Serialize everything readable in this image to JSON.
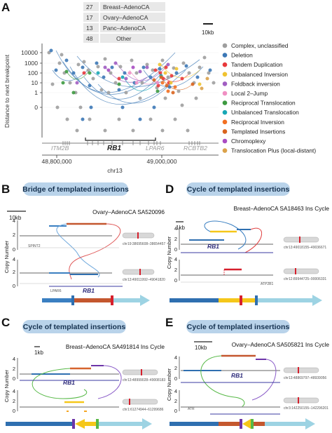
{
  "panels": {
    "a": {
      "letter": "A"
    },
    "b": {
      "letter": "B",
      "banner": "Bridge of templated insertions",
      "title": "Ovary–AdenoCA SA520096",
      "scale": "10kb",
      "chr_top": "chr19:38695608–38654457",
      "chr_bottom": "chr13:49011992–49041820",
      "gene_small_top": "SPINT2",
      "gene_small_bottom": "LPAR6",
      "gene_main": "RB1"
    },
    "c": {
      "letter": "C",
      "banner": "Cycle of templated insertions",
      "title": "Breast–AdenoCA SA491814 Ins Cycle",
      "scale": "1kb",
      "chr_top": "chr13:48999028–49008183",
      "chr_bottom": "chr1:61274944–61299686",
      "gene_main": "RB1"
    },
    "d": {
      "letter": "D",
      "banner": "Cycle of templated insertions",
      "title": "Breast–AdenoCA SA18463 Ins Cycle",
      "scale": "1kb",
      "chr_top": "chr13:49018155–49036671",
      "chr_bottom": "chr12:89944725–90006331",
      "gene_main": "RB1",
      "gene_small": "ATP2B1"
    },
    "e": {
      "letter": "E",
      "banner": "Cycle of templated insertions",
      "title": "Ovary–AdenoCA SA505821 Ins Cycle",
      "scale": "10kb",
      "chr_top": "chr13:48869797–48939056",
      "chr_bottom": "chr3:142250155–142296201",
      "gene_main": "RB1",
      "gene_small": "ATR"
    }
  },
  "cn_axis": {
    "label": "Copy Number",
    "ticks": [
      "0",
      "2",
      "4"
    ]
  },
  "count_table": [
    {
      "count": "27",
      "label": "Breast–AdenoCA"
    },
    {
      "count": "17",
      "label": "Ovary–AdenoCA"
    },
    {
      "count": "13",
      "label": "Panc–AdenoCA"
    },
    {
      "count": "48",
      "label": "Other"
    }
  ],
  "scale_a": "10kb",
  "chart_data": {
    "type": "scatter",
    "xlabel": "chr13",
    "ylabel": "Distance to next breakpoint",
    "x_ticks": [
      "48,800,000",
      "49,000,000"
    ],
    "y_ticks": [
      "10000",
      "1000",
      "100",
      "10",
      "1",
      "0"
    ],
    "y_scale": "log",
    "genes": [
      {
        "name": "ITM2B",
        "style": "gray"
      },
      {
        "name": "RB1",
        "style": "bold"
      },
      {
        "name": "LPAR6",
        "style": "gray"
      },
      {
        "name": "RCBTB2",
        "style": "gray"
      }
    ],
    "legend": [
      {
        "label": "Complex, unclassified",
        "color": "#9e9e9e"
      },
      {
        "label": "Deletion",
        "color": "#3c78b6"
      },
      {
        "label": "Tandem Duplication",
        "color": "#e8393b"
      },
      {
        "label": "Unbalanced Inversion",
        "color": "#f0c330"
      },
      {
        "label": "Foldback inversion",
        "color": "#a15ec2"
      },
      {
        "label": "Local 2–Jump",
        "color": "#f08fc3"
      },
      {
        "label": "Reciprocal Translocation",
        "color": "#3d9a40"
      },
      {
        "label": "Unbalanced Translocation",
        "color": "#17a7b5"
      },
      {
        "label": "Reciprocal Inversion",
        "color": "#f26f21"
      },
      {
        "label": "Templated Insertions",
        "color": "#d9641e"
      },
      {
        "label": "Chromoplexy",
        "color": "#a94cc2"
      },
      {
        "label": "Translocation Plus (local-distant)",
        "color": "#dba24a"
      }
    ]
  },
  "colors": {
    "banner": "#b9d3ea",
    "blue": "#3a7fc1",
    "orange": "#e07d2b",
    "brick": "#c4572e",
    "light_blue": "#9dd3e3",
    "yellow": "#f5c71a",
    "red": "#d6202d",
    "green": "#57b947",
    "purple": "#6d35a8",
    "teal": "#6fc4d8"
  }
}
